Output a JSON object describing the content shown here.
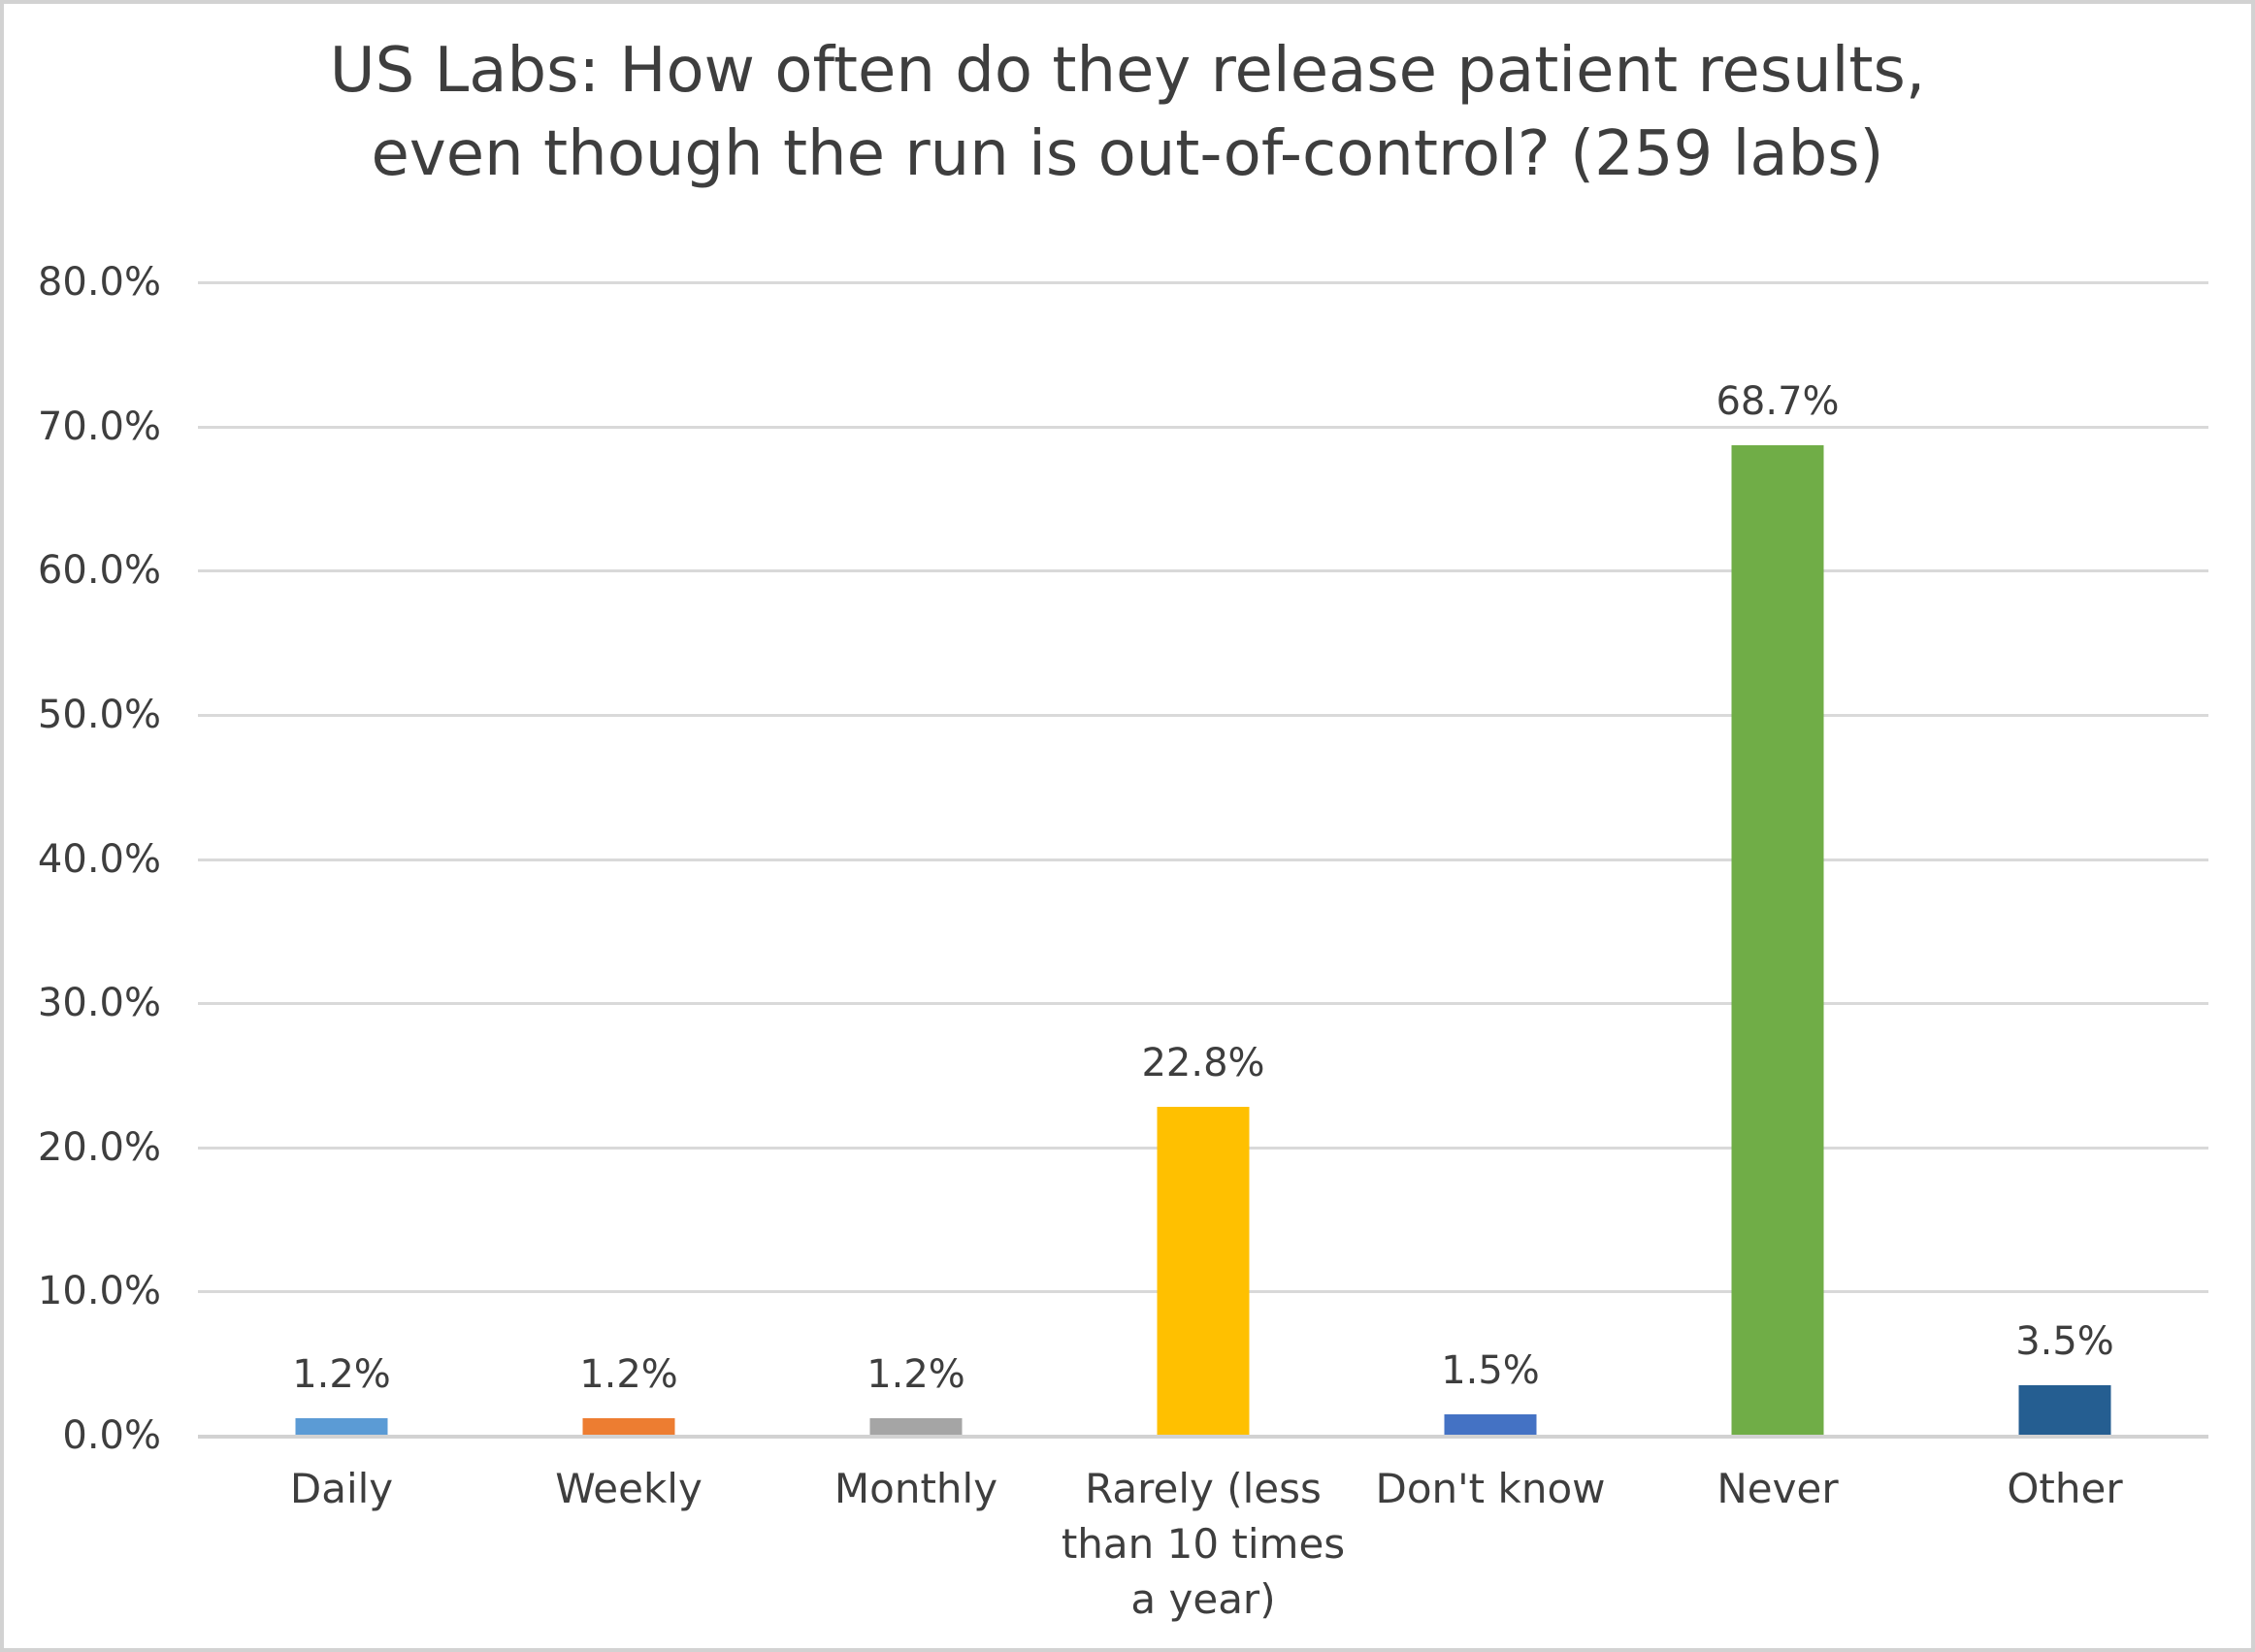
{
  "chart_data": {
    "type": "bar",
    "title": "US Labs: How often do they release patient results, even though the run is out-of-control? (259 labs)",
    "title_lines": [
      "US Labs: How often do they release patient results,",
      "even though the run is out-of-control? (259 labs)"
    ],
    "categories": [
      "Daily",
      "Weekly",
      "Monthly",
      "Rarely (less than 10 times a year)",
      "Don't know",
      "Never",
      "Other"
    ],
    "values": [
      1.2,
      1.2,
      1.2,
      22.8,
      1.5,
      68.7,
      3.5
    ],
    "data_labels": [
      "1.2%",
      "1.2%",
      "1.2%",
      "22.8%",
      "1.5%",
      "68.7%",
      "3.5%"
    ],
    "bar_colors": [
      "#5B9BD5",
      "#ED7D31",
      "#A5A5A5",
      "#FFC000",
      "#4472C4",
      "#70AD47",
      "#255E91"
    ],
    "xlabel": "",
    "ylabel": "",
    "ylim": [
      0,
      80
    ],
    "ytick_labels": [
      "80.0%",
      "70.0%",
      "60.0%",
      "50.0%",
      "40.0%",
      "30.0%",
      "20.0%",
      "10.0%",
      "0.0%"
    ],
    "grid": true,
    "legend_position": "none",
    "colors": {
      "text": "#3E3E3E",
      "gridline": "#D9D9D9",
      "axis_line": "#D2D2D2",
      "page_border": "#D2D2D2",
      "background": "#FFFFFF"
    }
  }
}
